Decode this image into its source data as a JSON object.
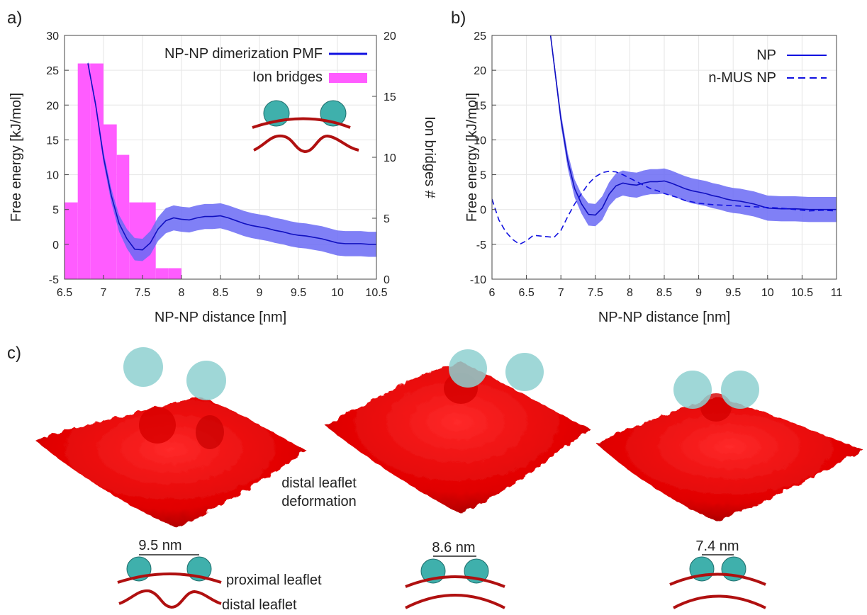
{
  "panels": {
    "a": "a)",
    "b": "b)",
    "c": "c)"
  },
  "colors": {
    "pmf": "#1010e0",
    "band": "#6a6af5",
    "bars": "#ff40ff",
    "membrane": "#ee0000",
    "np": "#3fb0ac",
    "leaflet": "#b01010"
  },
  "chart_data": [
    {
      "type": "bar+line",
      "xlabel": "NP-NP distance [nm]",
      "ylabel": "Free energy [kJ/mol]",
      "y2label": "Ion bridges #",
      "xlim": [
        6.5,
        10.5
      ],
      "ylim": [
        -5,
        30
      ],
      "y2lim": [
        0,
        20
      ],
      "xticks": [
        "6.5",
        "7",
        "7.5",
        "8",
        "8.5",
        "9",
        "9.5",
        "10",
        "10.5"
      ],
      "yticks": [
        "-5",
        "0",
        "5",
        "10",
        "15",
        "20",
        "25",
        "30"
      ],
      "y2ticks": [
        "0",
        "5",
        "10",
        "15",
        "20"
      ],
      "legend": [
        "NP-NP dimerization PMF",
        "Ion bridges"
      ],
      "legend_position": "top-right",
      "grid": true,
      "bars": {
        "name": "Ion bridges",
        "x_left": [
          6.5,
          6.67,
          6.83,
          7.0,
          7.17,
          7.33,
          7.5,
          7.67,
          7.83,
          8.0,
          8.17
        ],
        "x_right": [
          6.67,
          6.83,
          7.0,
          7.17,
          7.33,
          7.5,
          7.67,
          7.83,
          8.0,
          8.17,
          8.33
        ],
        "values": [
          6.3,
          17.7,
          17.7,
          12.7,
          10.2,
          6.3,
          6.3,
          0.9,
          0.9,
          0,
          0
        ]
      },
      "series": [
        {
          "name": "NP-NP dimerization PMF",
          "x": [
            6.8,
            6.9,
            7.0,
            7.1,
            7.2,
            7.3,
            7.4,
            7.5,
            7.6,
            7.7,
            7.8,
            7.9,
            8.0,
            8.1,
            8.2,
            8.3,
            8.4,
            8.5,
            8.6,
            8.7,
            8.8,
            8.9,
            9.0,
            9.1,
            9.2,
            9.3,
            9.4,
            9.5,
            9.6,
            9.7,
            9.8,
            9.9,
            10.0,
            10.1,
            10.2,
            10.3,
            10.4,
            10.5
          ],
          "y": [
            26,
            20,
            12.5,
            7,
            3,
            0.8,
            -0.7,
            -0.8,
            0.2,
            2.2,
            3.4,
            3.8,
            3.6,
            3.5,
            3.8,
            4.0,
            4.0,
            4.1,
            3.8,
            3.4,
            3.0,
            2.7,
            2.5,
            2.3,
            2.0,
            1.8,
            1.5,
            1.3,
            1.2,
            1.0,
            0.8,
            0.5,
            0.2,
            0.1,
            0.1,
            0.1,
            0.0,
            0.0
          ],
          "err": [
            0.3,
            0.5,
            0.8,
            1.0,
            1.2,
            1.4,
            1.6,
            1.6,
            1.7,
            1.7,
            1.8,
            1.8,
            1.8,
            1.8,
            1.8,
            1.8,
            1.8,
            1.8,
            1.8,
            1.8,
            1.8,
            1.8,
            1.8,
            1.8,
            1.8,
            1.8,
            1.8,
            1.8,
            1.8,
            1.8,
            1.8,
            1.8,
            1.8,
            1.8,
            1.8,
            1.8,
            1.8,
            1.8
          ]
        }
      ]
    },
    {
      "type": "line",
      "xlabel": "NP-NP distance [nm]",
      "ylabel": "Free energy [kJ/mol]",
      "xlim": [
        6,
        11
      ],
      "ylim": [
        -10,
        25
      ],
      "xticks": [
        "6",
        "6.5",
        "7",
        "7.5",
        "8",
        "8.5",
        "9",
        "9.5",
        "10",
        "10.5",
        "11"
      ],
      "yticks": [
        "-10",
        "-5",
        "0",
        "5",
        "10",
        "15",
        "20",
        "25"
      ],
      "legend": [
        "NP",
        "n-MUS NP"
      ],
      "legend_position": "top-right",
      "grid": true,
      "series": [
        {
          "name": "NP",
          "style": "solid",
          "x": [
            6.85,
            6.9,
            7.0,
            7.1,
            7.2,
            7.3,
            7.4,
            7.5,
            7.6,
            7.7,
            7.8,
            7.9,
            8.0,
            8.1,
            8.2,
            8.3,
            8.4,
            8.5,
            8.6,
            8.7,
            8.8,
            8.9,
            9.0,
            9.1,
            9.2,
            9.3,
            9.4,
            9.5,
            9.6,
            9.7,
            9.8,
            9.9,
            10.0,
            10.2,
            10.4,
            10.6,
            10.8,
            11.0
          ],
          "y": [
            25,
            21,
            13,
            7,
            3,
            0.8,
            -0.7,
            -0.8,
            0.2,
            2.2,
            3.4,
            3.8,
            3.6,
            3.5,
            3.8,
            4.0,
            4.0,
            4.1,
            3.8,
            3.4,
            3.0,
            2.7,
            2.5,
            2.3,
            2.0,
            1.8,
            1.5,
            1.3,
            1.2,
            1.0,
            0.8,
            0.5,
            0.2,
            0.1,
            0.1,
            0.0,
            0.0,
            0.0
          ],
          "err": [
            0.4,
            0.6,
            0.9,
            1.1,
            1.3,
            1.4,
            1.6,
            1.6,
            1.7,
            1.7,
            1.8,
            1.8,
            1.8,
            1.8,
            1.8,
            1.8,
            1.8,
            1.8,
            1.8,
            1.8,
            1.8,
            1.8,
            1.8,
            1.8,
            1.8,
            1.8,
            1.8,
            1.8,
            1.8,
            1.8,
            1.8,
            1.8,
            1.8,
            1.8,
            1.8,
            1.8,
            1.8,
            1.8
          ]
        },
        {
          "name": "n-MUS NP",
          "style": "dashed",
          "x": [
            6.0,
            6.1,
            6.2,
            6.3,
            6.4,
            6.5,
            6.6,
            6.7,
            6.8,
            6.9,
            7.0,
            7.1,
            7.2,
            7.3,
            7.4,
            7.5,
            7.6,
            7.7,
            7.8,
            7.9,
            8.0,
            8.1,
            8.2,
            8.3,
            8.4,
            8.5,
            8.6,
            8.7,
            8.8,
            8.9,
            9.0,
            9.2,
            9.4,
            9.6,
            9.8,
            10.0,
            10.2,
            10.4,
            10.6,
            10.8,
            11.0
          ],
          "y": [
            1.5,
            -1.5,
            -3.2,
            -4.3,
            -5.0,
            -4.5,
            -3.7,
            -3.8,
            -3.9,
            -4.0,
            -3.0,
            -1.0,
            0.8,
            2.3,
            3.7,
            4.7,
            5.3,
            5.5,
            5.4,
            5.0,
            4.5,
            4.0,
            3.5,
            3.0,
            2.7,
            2.3,
            2.0,
            1.7,
            1.3,
            1.1,
            0.9,
            0.7,
            0.6,
            0.5,
            0.4,
            0.3,
            0.2,
            0.0,
            -0.2,
            -0.1,
            -0.2
          ]
        }
      ]
    }
  ],
  "panel_a_icon": {},
  "panel_c": {
    "label_deformation_1": "distal leaflet",
    "label_deformation_2": "deformation",
    "distance_labels": [
      "9.5 nm",
      "8.6 nm",
      "7.4 nm"
    ],
    "proximal_label": "proximal leaflet",
    "distal_label": "distal leaflet"
  }
}
